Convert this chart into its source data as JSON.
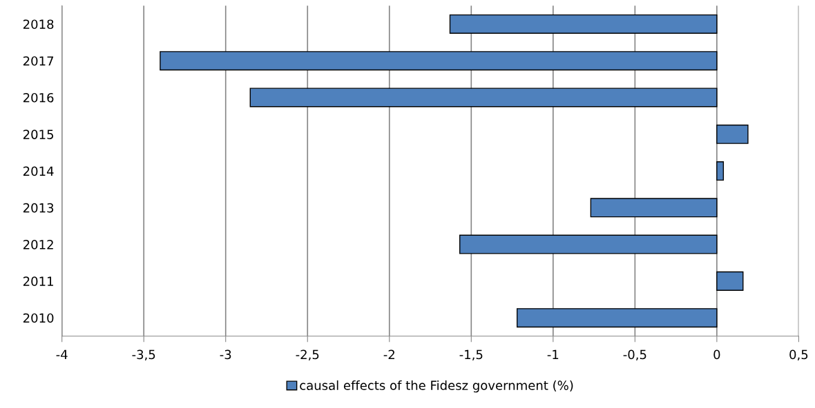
{
  "chart_data": {
    "type": "bar",
    "orientation": "horizontal",
    "categories": [
      "2018",
      "2017",
      "2016",
      "2015",
      "2014",
      "2013",
      "2012",
      "2011",
      "2010"
    ],
    "series": [
      {
        "name": "causal effects of the Fidesz government (%)",
        "color": "#4f81bd",
        "values": [
          -1.63,
          -3.4,
          -2.85,
          0.19,
          0.04,
          -0.77,
          -1.57,
          0.16,
          -1.22
        ]
      }
    ],
    "xlim": [
      -4,
      0.5
    ],
    "xticks": [
      -4,
      {
        "value": -3.5,
        "label": "-3,5"
      },
      -3,
      {
        "value": -2.5,
        "label": "-2,5"
      },
      -2,
      {
        "value": -1.5,
        "label": "-1,5"
      },
      -1,
      {
        "value": -0.5,
        "label": "-0,5"
      },
      0,
      {
        "value": 0.5,
        "label": "0,5"
      }
    ],
    "grid": "x",
    "legend": "bottom"
  }
}
